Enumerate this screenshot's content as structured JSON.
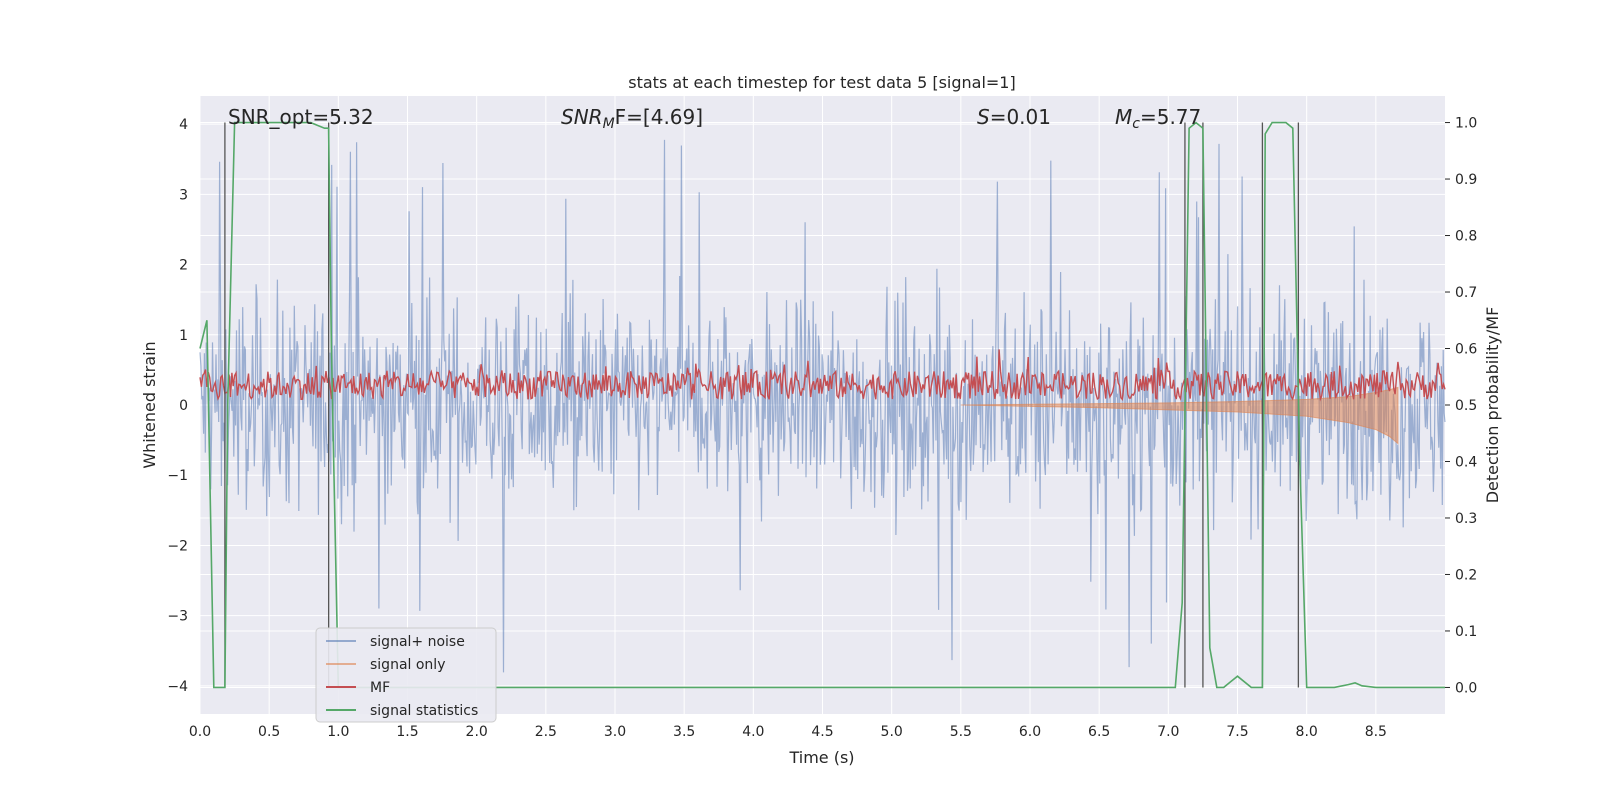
{
  "chart_data": {
    "type": "line",
    "title": "stats at each timestep for test data 5 [signal=1]",
    "xlabel": "Time (s)",
    "ylabel": "Whitened strain",
    "y2label": "Detection probability/MF",
    "xlim": [
      0.0,
      9.0
    ],
    "ylim": [
      -4.4,
      4.4
    ],
    "y2lim": [
      -0.047,
      1.047
    ],
    "xticks": [
      "0.0",
      "0.5",
      "1.0",
      "1.5",
      "2.0",
      "2.5",
      "3.0",
      "3.5",
      "4.0",
      "4.5",
      "5.0",
      "5.5",
      "6.0",
      "6.5",
      "7.0",
      "7.5",
      "8.0",
      "8.5"
    ],
    "yticks": [
      "4",
      "3",
      "2",
      "1",
      "0",
      "−1",
      "−2",
      "−3",
      "−4"
    ],
    "y2ticks": [
      "1.0",
      "0.9",
      "0.8",
      "0.7",
      "0.6",
      "0.5",
      "0.4",
      "0.3",
      "0.2",
      "0.1",
      "0.0"
    ],
    "grid": true,
    "legend_position": "lower-left",
    "annotations": {
      "snr_opt": "SNR_opt=5.32",
      "snr_mf_sym": "SNR",
      "snr_mf_sub": "M",
      "snr_mf_rest": "F=[4.69]",
      "s_sym": "S",
      "s_rest": "=0.01",
      "mc_sym": "M",
      "mc_sub": "c",
      "mc_rest": "=5.77"
    },
    "series": [
      {
        "name": "signal+ noise",
        "color": "#4c72b0",
        "description_level": "noise band roughly -1.6 to 1.6, spikes to about 4"
      },
      {
        "name": "signal only",
        "color": "#dd8452"
      },
      {
        "name": "MF",
        "color": "#c44e52"
      },
      {
        "name": "signal statistics",
        "color": "#55a868"
      }
    ],
    "signal_statistics": {
      "x": [
        0.0,
        0.05,
        0.1,
        0.12,
        0.18,
        0.2,
        0.25,
        0.3,
        0.4,
        0.5,
        0.6,
        0.7,
        0.8,
        0.9,
        0.93,
        0.95,
        1.0,
        7.05,
        7.1,
        7.15,
        7.2,
        7.25,
        7.3,
        7.35,
        7.4,
        7.45,
        7.5,
        7.6,
        7.68,
        7.7,
        7.75,
        7.8,
        7.85,
        7.9,
        7.95,
        8.0,
        8.2,
        8.3,
        8.35,
        8.4,
        8.5,
        9.0
      ],
      "y": [
        0.6,
        0.65,
        0.0,
        0.0,
        0.0,
        0.5,
        1.0,
        1.0,
        1.0,
        1.0,
        1.0,
        1.0,
        1.0,
        0.99,
        0.99,
        0.6,
        0.0,
        0.0,
        0.15,
        0.99,
        1.0,
        0.99,
        0.07,
        0.0,
        0.0,
        0.01,
        0.02,
        0.0,
        0.0,
        0.98,
        1.0,
        1.0,
        1.0,
        0.99,
        0.4,
        0.0,
        0.0,
        0.005,
        0.008,
        0.003,
        0.0,
        0.0
      ]
    },
    "detection_markers_x": [
      0.18,
      0.93,
      7.12,
      7.25,
      7.68,
      7.94
    ],
    "signal_only_envelope": {
      "x": [
        5.5,
        6.0,
        6.5,
        7.0,
        7.5,
        8.0,
        8.3,
        8.5,
        8.6,
        8.66
      ],
      "upper": [
        0.0,
        0.01,
        0.02,
        0.03,
        0.05,
        0.08,
        0.12,
        0.18,
        0.22,
        0.25
      ],
      "lower": [
        0.0,
        -0.02,
        -0.04,
        -0.07,
        -0.1,
        -0.16,
        -0.25,
        -0.35,
        -0.45,
        -0.55
      ]
    }
  }
}
